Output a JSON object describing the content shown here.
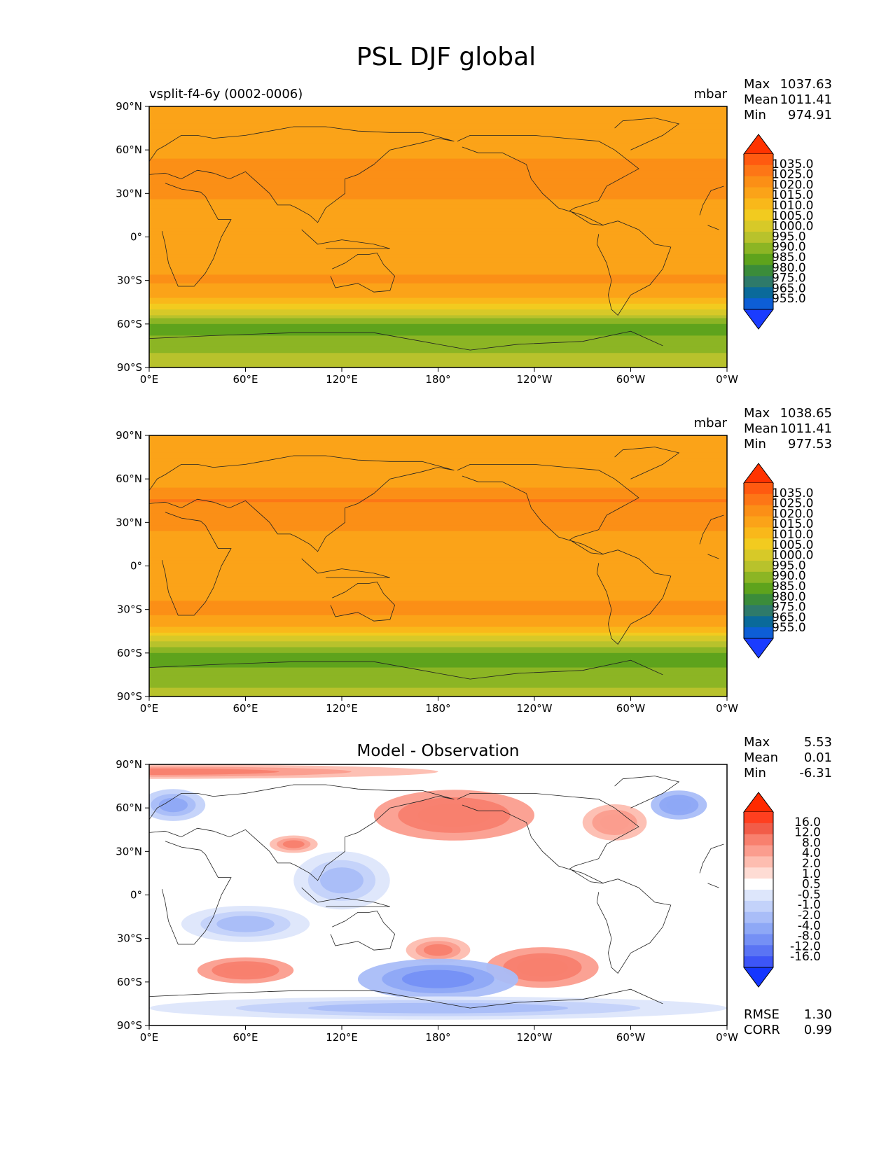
{
  "figure": {
    "title": "PSL DJF global"
  },
  "chart_data": [
    {
      "type": "heatmap",
      "panel": "test",
      "left_title": "vsplit-f4-6y (0002-0006)",
      "center_title": "",
      "units": "mbar",
      "stats": [
        {
          "label": "Max",
          "value": "1037.63"
        },
        {
          "label": "Mean",
          "value": "1011.41"
        },
        {
          "label": "Min",
          "value": "974.91"
        }
      ],
      "xlabels": [
        "0°E",
        "60°E",
        "120°E",
        "180°",
        "120°W",
        "60°W",
        "0°W"
      ],
      "ylabels": [
        "90°N",
        "60°N",
        "30°N",
        "0°",
        "30°S",
        "60°S",
        "90°S"
      ],
      "colorbar": {
        "levels": [
          "1035.0",
          "1025.0",
          "1020.0",
          "1015.0",
          "1010.0",
          "1005.0",
          "1000.0",
          "995.0",
          "990.0",
          "985.0",
          "980.0",
          "975.0",
          "965.0",
          "955.0"
        ],
        "colors": [
          "#ff3300",
          "#ff5a10",
          "#fd7616",
          "#fb8f16",
          "#fba318",
          "#f9b81a",
          "#f2cb1f",
          "#d7c928",
          "#b8c22c",
          "#8cb524",
          "#5ea31c",
          "#3b8c3a",
          "#2e7a6a",
          "#0a6a9a",
          "#0d5ed6",
          "#1a3cff"
        ]
      },
      "zonal_profile": [
        {
          "lat": 90,
          "value": 1012
        },
        {
          "lat": 75,
          "value": 1010
        },
        {
          "lat": 60,
          "value": 1012
        },
        {
          "lat": 45,
          "value": 1019
        },
        {
          "lat": 30,
          "value": 1016
        },
        {
          "lat": 15,
          "value": 1012
        },
        {
          "lat": 0,
          "value": 1010
        },
        {
          "lat": -15,
          "value": 1011
        },
        {
          "lat": -30,
          "value": 1016
        },
        {
          "lat": -40,
          "value": 1012
        },
        {
          "lat": -50,
          "value": 1000
        },
        {
          "lat": -60,
          "value": 985
        },
        {
          "lat": -65,
          "value": 982
        },
        {
          "lat": -70,
          "value": 986
        },
        {
          "lat": -80,
          "value": 990
        },
        {
          "lat": -90,
          "value": 992
        }
      ]
    },
    {
      "type": "heatmap",
      "panel": "reference",
      "left_title": "",
      "center_title": "",
      "units": "mbar",
      "stats": [
        {
          "label": "Max",
          "value": "1038.65"
        },
        {
          "label": "Mean",
          "value": "1011.41"
        },
        {
          "label": "Min",
          "value": "977.53"
        }
      ],
      "xlabels": [
        "0°E",
        "60°E",
        "120°E",
        "180°",
        "120°W",
        "60°W",
        "0°W"
      ],
      "ylabels": [
        "90°N",
        "60°N",
        "30°N",
        "0°",
        "30°S",
        "60°S",
        "90°S"
      ],
      "colorbar": {
        "levels": [
          "1035.0",
          "1025.0",
          "1020.0",
          "1015.0",
          "1010.0",
          "1005.0",
          "1000.0",
          "995.0",
          "990.0",
          "985.0",
          "980.0",
          "975.0",
          "965.0",
          "955.0"
        ],
        "colors": [
          "#ff3300",
          "#ff5a10",
          "#fd7616",
          "#fb8f16",
          "#fba318",
          "#f9b81a",
          "#f2cb1f",
          "#d7c928",
          "#b8c22c",
          "#8cb524",
          "#5ea31c",
          "#3b8c3a",
          "#2e7a6a",
          "#0a6a9a",
          "#0d5ed6",
          "#1a3cff"
        ]
      },
      "zonal_profile": [
        {
          "lat": 90,
          "value": 1013
        },
        {
          "lat": 75,
          "value": 1011
        },
        {
          "lat": 60,
          "value": 1012
        },
        {
          "lat": 45,
          "value": 1020
        },
        {
          "lat": 30,
          "value": 1017
        },
        {
          "lat": 15,
          "value": 1012
        },
        {
          "lat": 0,
          "value": 1010
        },
        {
          "lat": -15,
          "value": 1012
        },
        {
          "lat": -30,
          "value": 1017
        },
        {
          "lat": -40,
          "value": 1012
        },
        {
          "lat": -50,
          "value": 998
        },
        {
          "lat": -60,
          "value": 984
        },
        {
          "lat": -65,
          "value": 983
        },
        {
          "lat": -70,
          "value": 985
        },
        {
          "lat": -80,
          "value": 989
        },
        {
          "lat": -90,
          "value": 991
        }
      ]
    },
    {
      "type": "heatmap",
      "panel": "difference",
      "left_title": "",
      "center_title": "Model - Observation",
      "units": "",
      "stats": [
        {
          "label": "Max",
          "value": "5.53"
        },
        {
          "label": "Mean",
          "value": "0.01"
        },
        {
          "label": "Min",
          "value": "-6.31"
        }
      ],
      "extra_stats": [
        {
          "label": "RMSE",
          "value": "1.30"
        },
        {
          "label": "CORR",
          "value": "0.99"
        }
      ],
      "xlabels": [
        "0°E",
        "60°E",
        "120°E",
        "180°",
        "120°W",
        "60°W",
        "0°W"
      ],
      "ylabels": [
        "90°N",
        "60°N",
        "30°N",
        "0°",
        "30°S",
        "60°S",
        "90°S"
      ],
      "colorbar": {
        "levels": [
          "16.0",
          "12.0",
          "8.0",
          "4.0",
          "2.0",
          "1.0",
          "0.5",
          "-0.5",
          "-1.0",
          "-2.0",
          "-4.0",
          "-8.0",
          "-12.0",
          "-16.0"
        ],
        "colors": [
          "#ff2a00",
          "#ff3f1f",
          "#f25c48",
          "#f8806e",
          "#fb9d8e",
          "#fdbdb0",
          "#fedcd4",
          "#ffffff",
          "#dde6fb",
          "#c3d2fa",
          "#a9bdf8",
          "#8ea8f6",
          "#7590f5",
          "#5a74f4",
          "#3d55f7",
          "#1436ff"
        ]
      },
      "anomalies": [
        {
          "lon": 0,
          "lat": 85,
          "lon_span": 360,
          "lat_span": 10,
          "value": 3
        },
        {
          "lon": 15,
          "lat": 62,
          "lon_span": 40,
          "lat_span": 22,
          "value": -4
        },
        {
          "lon": 90,
          "lat": 35,
          "lon_span": 30,
          "lat_span": 12,
          "value": 3
        },
        {
          "lon": 120,
          "lat": 10,
          "lon_span": 60,
          "lat_span": 40,
          "value": -1.5
        },
        {
          "lon": 190,
          "lat": 55,
          "lon_span": 100,
          "lat_span": 35,
          "value": 5
        },
        {
          "lon": 290,
          "lat": 50,
          "lon_span": 40,
          "lat_span": 25,
          "value": 2
        },
        {
          "lon": 330,
          "lat": 62,
          "lon_span": 35,
          "lat_span": 20,
          "value": -5
        },
        {
          "lon": 60,
          "lat": -52,
          "lon_span": 60,
          "lat_span": 18,
          "value": 4
        },
        {
          "lon": 180,
          "lat": -38,
          "lon_span": 40,
          "lat_span": 18,
          "value": 3
        },
        {
          "lon": 245,
          "lat": -50,
          "lon_span": 70,
          "lat_span": 28,
          "value": 5
        },
        {
          "lon": 180,
          "lat": -58,
          "lon_span": 100,
          "lat_span": 28,
          "value": -6
        },
        {
          "lon": 60,
          "lat": -20,
          "lon_span": 80,
          "lat_span": 25,
          "value": -1.5
        },
        {
          "lon": 180,
          "lat": -78,
          "lon_span": 360,
          "lat_span": 16,
          "value": -2
        }
      ]
    }
  ]
}
